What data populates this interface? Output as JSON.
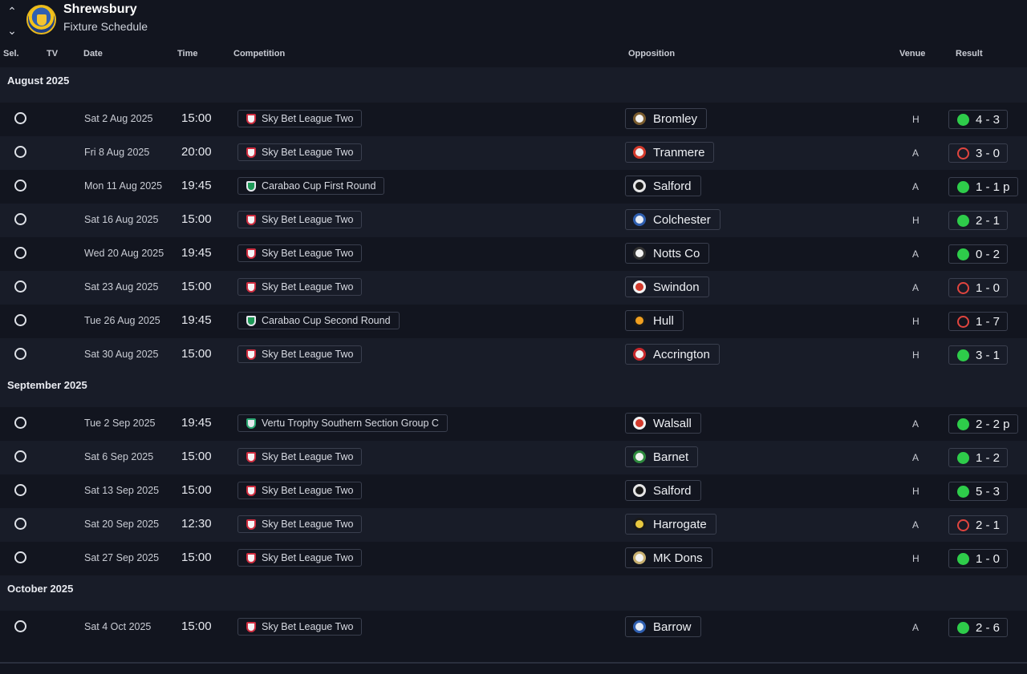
{
  "header": {
    "team_name": "Shrewsbury",
    "subtitle": "Fixture Schedule",
    "up_arrow": "⌃",
    "down_arrow": "⌄"
  },
  "columns": {
    "sel": "Sel.",
    "tv": "TV",
    "date": "Date",
    "time": "Time",
    "competition": "Competition",
    "opposition": "Opposition",
    "venue": "Venue",
    "result": "Result"
  },
  "colors": {
    "background": "#12151f",
    "row_alt": "#181c28",
    "win": "#2ecc4a",
    "loss": "#e0453f"
  },
  "months": [
    {
      "label": "August 2025",
      "fixtures": [
        {
          "date": "Sat 2 Aug 2025",
          "time": "15:00",
          "competition": "Sky Bet League Two",
          "comp_icon": "league",
          "opposition": "Bromley",
          "badge": [
            "#f2f2f2",
            "#7a5c2e"
          ],
          "venue": "H",
          "result": "4 - 3",
          "outcome": "win"
        },
        {
          "date": "Fri 8 Aug 2025",
          "time": "20:00",
          "competition": "Sky Bet League Two",
          "comp_icon": "league",
          "opposition": "Tranmere",
          "badge": [
            "#f2f2f2",
            "#d33a2c"
          ],
          "venue": "A",
          "result": "3 - 0",
          "outcome": "loss"
        },
        {
          "date": "Mon 11 Aug 2025",
          "time": "19:45",
          "competition": "Carabao Cup First Round",
          "comp_icon": "carabao",
          "opposition": "Salford",
          "badge": [
            "#1a1a1a",
            "#e6e6e6"
          ],
          "venue": "A",
          "result": "1 - 1 p",
          "outcome": "draw"
        },
        {
          "date": "Sat 16 Aug 2025",
          "time": "15:00",
          "competition": "Sky Bet League Two",
          "comp_icon": "league",
          "opposition": "Colchester",
          "badge": [
            "#e8edf5",
            "#2f5fb0"
          ],
          "venue": "H",
          "result": "2 - 1",
          "outcome": "win"
        },
        {
          "date": "Wed 20 Aug 2025",
          "time": "19:45",
          "competition": "Sky Bet League Two",
          "comp_icon": "league",
          "opposition": "Notts Co",
          "badge": [
            "#f2f2f2",
            "#333333"
          ],
          "venue": "A",
          "result": "0 - 2",
          "outcome": "win"
        },
        {
          "date": "Sat 23 Aug 2025",
          "time": "15:00",
          "competition": "Sky Bet League Two",
          "comp_icon": "league",
          "opposition": "Swindon",
          "badge": [
            "#d33a2c",
            "#f2f2f2"
          ],
          "venue": "A",
          "result": "1 - 0",
          "outcome": "loss"
        },
        {
          "date": "Tue 26 Aug 2025",
          "time": "19:45",
          "competition": "Carabao Cup Second Round",
          "comp_icon": "carabao",
          "opposition": "Hull",
          "badge": [
            "#f1a020",
            "#1a1a1a"
          ],
          "venue": "H",
          "result": "1 - 7",
          "outcome": "loss"
        },
        {
          "date": "Sat 30 Aug 2025",
          "time": "15:00",
          "competition": "Sky Bet League Two",
          "comp_icon": "league",
          "opposition": "Accrington",
          "badge": [
            "#f2f2f2",
            "#c8282c"
          ],
          "venue": "H",
          "result": "3 - 1",
          "outcome": "win"
        }
      ]
    },
    {
      "label": "September 2025",
      "fixtures": [
        {
          "date": "Tue 2 Sep 2025",
          "time": "19:45",
          "competition": "Vertu Trophy Southern Section Group C",
          "comp_icon": "vertu",
          "opposition": "Walsall",
          "badge": [
            "#d33a2c",
            "#f2f2f2"
          ],
          "venue": "A",
          "result": "2 - 2 p",
          "outcome": "draw"
        },
        {
          "date": "Sat 6 Sep 2025",
          "time": "15:00",
          "competition": "Sky Bet League Two",
          "comp_icon": "league",
          "opposition": "Barnet",
          "badge": [
            "#f2f2f2",
            "#2e8a3e"
          ],
          "venue": "A",
          "result": "1 - 2",
          "outcome": "win"
        },
        {
          "date": "Sat 13 Sep 2025",
          "time": "15:00",
          "competition": "Sky Bet League Two",
          "comp_icon": "league",
          "opposition": "Salford",
          "badge": [
            "#1a1a1a",
            "#e6e6e6"
          ],
          "venue": "H",
          "result": "5 - 3",
          "outcome": "win"
        },
        {
          "date": "Sat 20 Sep 2025",
          "time": "12:30",
          "competition": "Sky Bet League Two",
          "comp_icon": "league",
          "opposition": "Harrogate",
          "badge": [
            "#e8c840",
            "#1a1a1a"
          ],
          "venue": "A",
          "result": "2 - 1",
          "outcome": "loss"
        },
        {
          "date": "Sat 27 Sep 2025",
          "time": "15:00",
          "competition": "Sky Bet League Two",
          "comp_icon": "league",
          "opposition": "MK Dons",
          "badge": [
            "#f2f2f2",
            "#c8b070"
          ],
          "venue": "H",
          "result": "1 - 0",
          "outcome": "win"
        }
      ]
    },
    {
      "label": "October 2025",
      "fixtures": [
        {
          "date": "Sat 4 Oct 2025",
          "time": "15:00",
          "competition": "Sky Bet League Two",
          "comp_icon": "league",
          "opposition": "Barrow",
          "badge": [
            "#e8edf5",
            "#2f5fb0"
          ],
          "venue": "A",
          "result": "2 - 6",
          "outcome": "win"
        }
      ]
    }
  ]
}
